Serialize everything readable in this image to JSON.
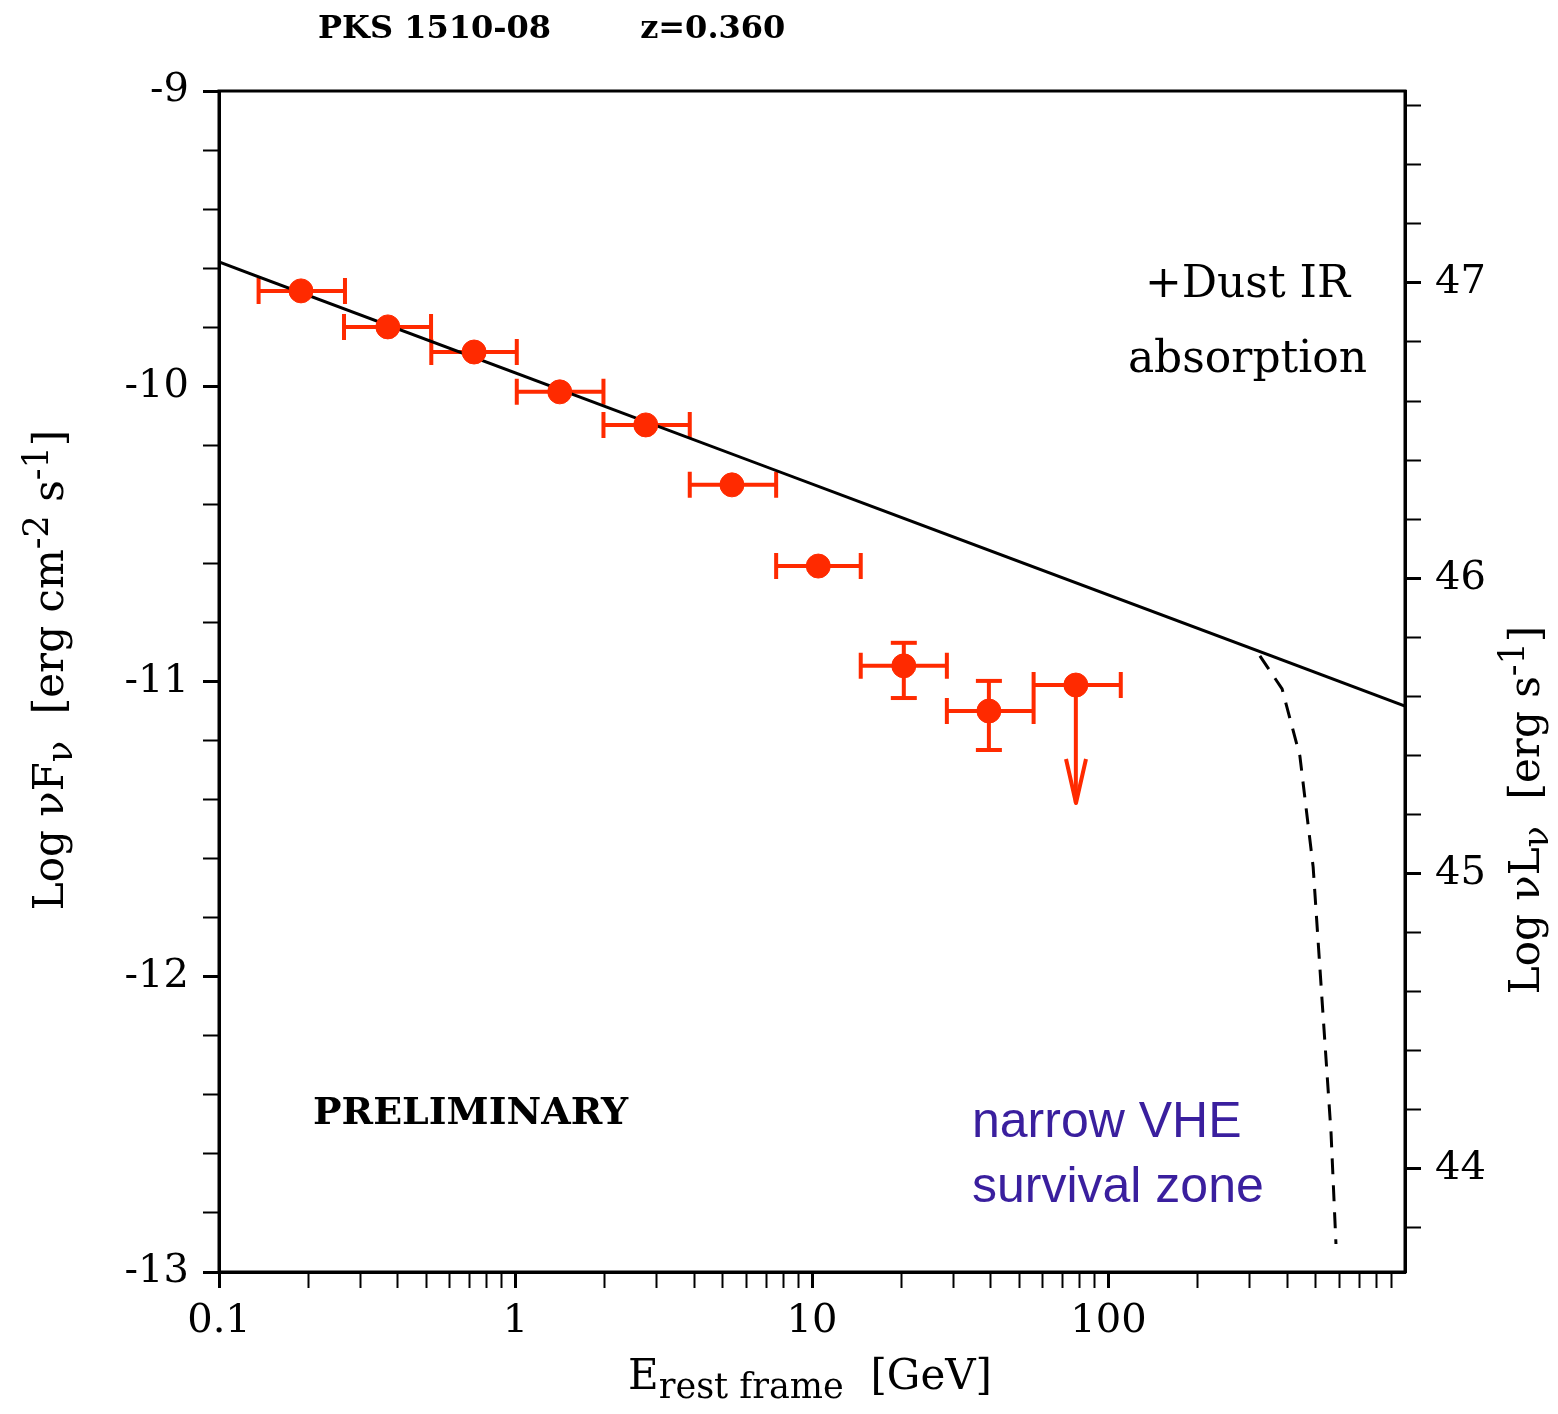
{
  "chart_data": {
    "type": "scatter",
    "title": "PKS 1510-08        z=0.360",
    "xlabel": "E$_{rest frame}$  [GeV]",
    "ylabel": "Log νF$_{ν}$  [erg cm$^{-2}$ s$^{-1}$]",
    "y2label": "Log νL$_{ν}$  [erg s$^{-1}$]",
    "annotations": [
      "+Dust IR absorption",
      "PRELIMINARY",
      "narrow VHE survival zone"
    ],
    "log": "x",
    "xlim": [
      0.1,
      1000
    ],
    "xticks": [
      {
        "value": 0.1,
        "label": "0.1"
      },
      {
        "value": 0.2,
        "label": null
      },
      {
        "value": 0.3,
        "label": null
      },
      {
        "value": 0.4,
        "label": null
      },
      {
        "value": 0.5,
        "label": null
      },
      {
        "value": 0.6,
        "label": null
      },
      {
        "value": 0.7,
        "label": null
      },
      {
        "value": 0.8,
        "label": null
      },
      {
        "value": 0.9,
        "label": null
      },
      1,
      {
        "value": 2,
        "label": null
      },
      {
        "value": 3,
        "label": null
      },
      {
        "value": 4,
        "label": null
      },
      {
        "value": 5,
        "label": null
      },
      {
        "value": 6,
        "label": null
      },
      {
        "value": 7,
        "label": null
      },
      {
        "value": 8,
        "label": null
      },
      {
        "value": 9,
        "label": null
      },
      10,
      {
        "value": 20,
        "label": null
      },
      {
        "value": 30,
        "label": null
      },
      {
        "value": 40,
        "label": null
      },
      {
        "value": 50,
        "label": null
      },
      {
        "value": 60,
        "label": null
      },
      {
        "value": 70,
        "label": null
      },
      {
        "value": 80,
        "label": null
      },
      {
        "value": 90,
        "label": null
      },
      100,
      {
        "value": 200,
        "label": null
      },
      {
        "value": 300,
        "label": null
      },
      {
        "value": 400,
        "label": null
      },
      {
        "value": 500,
        "label": null
      },
      {
        "value": 600,
        "label": null
      },
      {
        "value": 700,
        "label": null
      },
      {
        "value": 800,
        "label": null
      },
      {
        "value": 900,
        "label": null
      }
    ],
    "ylim": [
      -13,
      -9
    ],
    "yticks": [
      -13,
      {
        "value": -12.8,
        "label": null
      },
      {
        "value": -12.6,
        "label": null
      },
      {
        "value": -12.4,
        "label": null
      },
      {
        "value": -12.2,
        "label": null
      },
      -12,
      {
        "value": -11.8,
        "label": null
      },
      {
        "value": -11.6,
        "label": null
      },
      {
        "value": -11.4,
        "label": null
      },
      {
        "value": -11.2,
        "label": null
      },
      -11,
      {
        "value": -10.8,
        "label": null
      },
      {
        "value": -10.6,
        "label": null
      },
      {
        "value": -10.4,
        "label": null
      },
      {
        "value": -10.2,
        "label": null
      },
      -10,
      {
        "value": -9.8,
        "label": null
      },
      {
        "value": -9.6,
        "label": null
      },
      {
        "value": -9.4,
        "label": null
      },
      {
        "value": -9.2,
        "label": null
      },
      -9
    ],
    "y2lim": [
      43.65,
      47.65
    ],
    "y2ticks": [
      {
        "value": 43.8,
        "label": null
      },
      44,
      {
        "value": 44.2,
        "label": null
      },
      {
        "value": 44.4,
        "label": null
      },
      {
        "value": 44.6,
        "label": null
      },
      {
        "value": 44.8,
        "label": null
      },
      45,
      {
        "value": 45.2,
        "label": null
      },
      {
        "value": 45.4,
        "label": null
      },
      {
        "value": 45.6,
        "label": null
      },
      {
        "value": 45.8,
        "label": null
      },
      46,
      {
        "value": 46.2,
        "label": null
      },
      {
        "value": 46.4,
        "label": null
      },
      {
        "value": 46.6,
        "label": null
      },
      {
        "value": 46.8,
        "label": null
      },
      47,
      {
        "value": 47.2,
        "label": null
      },
      {
        "value": 47.4,
        "label": null
      },
      {
        "value": 47.6,
        "label": null
      }
    ],
    "series": [
      {
        "type": "scatter",
        "color": "#ff2a00",
        "marker": "circle",
        "x": [
          0.189,
          0.371,
          0.725,
          1.41,
          2.75,
          5.37,
          10.5,
          20.4,
          39.5,
          77.6
        ],
        "values": [
          -9.677,
          -9.799,
          -9.884,
          -10.019,
          -10.131,
          -10.334,
          -10.609,
          -10.947,
          -11.1,
          -11.012
        ],
        "xerrors": [
          [
            0.136,
            0.266
          ],
          [
            0.264,
            0.519
          ],
          [
            0.52,
            1.01
          ],
          [
            1.01,
            1.98
          ],
          [
            1.98,
            3.87
          ],
          [
            3.87,
            7.57
          ],
          [
            7.57,
            14.6
          ],
          [
            14.6,
            28.5
          ],
          [
            28.5,
            55.9
          ],
          [
            55.9,
            110
          ]
        ],
        "errors": [
          null,
          null,
          null,
          null,
          null,
          null,
          null,
          [
            -11.056,
            -10.869
          ],
          [
            -11.232,
            -10.998
          ],
          [
            -11.411,
            -11.012
          ]
        ]
      },
      {
        "type": "line",
        "color": "#000000",
        "marker": "none",
        "line_style": "solid",
        "x": [
          0.1,
          1000
        ],
        "values": [
          -9.579,
          -11.083
        ]
      },
      {
        "type": "line",
        "color": "#000000",
        "marker": "none",
        "line_style": "dashed",
        "x": [
          324,
          385,
          442,
          490,
          525,
          563,
          585
        ],
        "values": [
          -10.913,
          -11.025,
          -11.252,
          -11.628,
          -12.078,
          -12.528,
          -12.905
        ]
      }
    ]
  }
}
